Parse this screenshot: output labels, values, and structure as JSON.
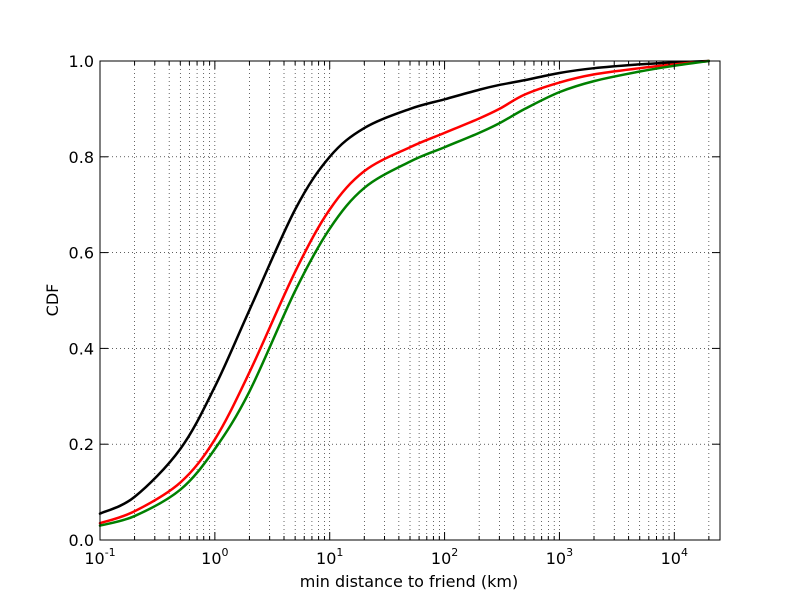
{
  "chart_data": {
    "type": "line",
    "title": "",
    "xlabel": "min distance to friend (km)",
    "ylabel": "CDF",
    "xscale": "log",
    "xlim": [
      0.1,
      25000
    ],
    "ylim": [
      0.0,
      1.0
    ],
    "grid": "dotted, major and minor",
    "legend": "none",
    "x_ticks": [
      {
        "base": "10",
        "exp": "-1"
      },
      {
        "base": "10",
        "exp": "0"
      },
      {
        "base": "10",
        "exp": "1"
      },
      {
        "base": "10",
        "exp": "2"
      },
      {
        "base": "10",
        "exp": "3"
      },
      {
        "base": "10",
        "exp": "4"
      }
    ],
    "y_ticks": [
      "0.0",
      "0.2",
      "0.4",
      "0.6",
      "0.8",
      "1.0"
    ],
    "x": [
      0.1,
      0.2,
      0.5,
      1,
      2,
      5,
      10,
      20,
      50,
      100,
      200,
      300,
      500,
      1000,
      2000,
      5000,
      10000,
      20000
    ],
    "series": [
      {
        "color": "#000000",
        "values": [
          0.055,
          0.09,
          0.19,
          0.32,
          0.48,
          0.69,
          0.8,
          0.86,
          0.9,
          0.92,
          0.94,
          0.95,
          0.96,
          0.975,
          0.985,
          0.993,
          0.997,
          1.0
        ]
      },
      {
        "color": "#ff0000",
        "values": [
          0.035,
          0.06,
          0.12,
          0.21,
          0.35,
          0.56,
          0.69,
          0.77,
          0.82,
          0.85,
          0.88,
          0.9,
          0.93,
          0.955,
          0.972,
          0.985,
          0.993,
          1.0
        ]
      },
      {
        "color": "#008000",
        "values": [
          0.03,
          0.05,
          0.105,
          0.19,
          0.31,
          0.52,
          0.65,
          0.735,
          0.79,
          0.82,
          0.85,
          0.87,
          0.9,
          0.935,
          0.958,
          0.978,
          0.99,
          1.0
        ]
      }
    ]
  }
}
